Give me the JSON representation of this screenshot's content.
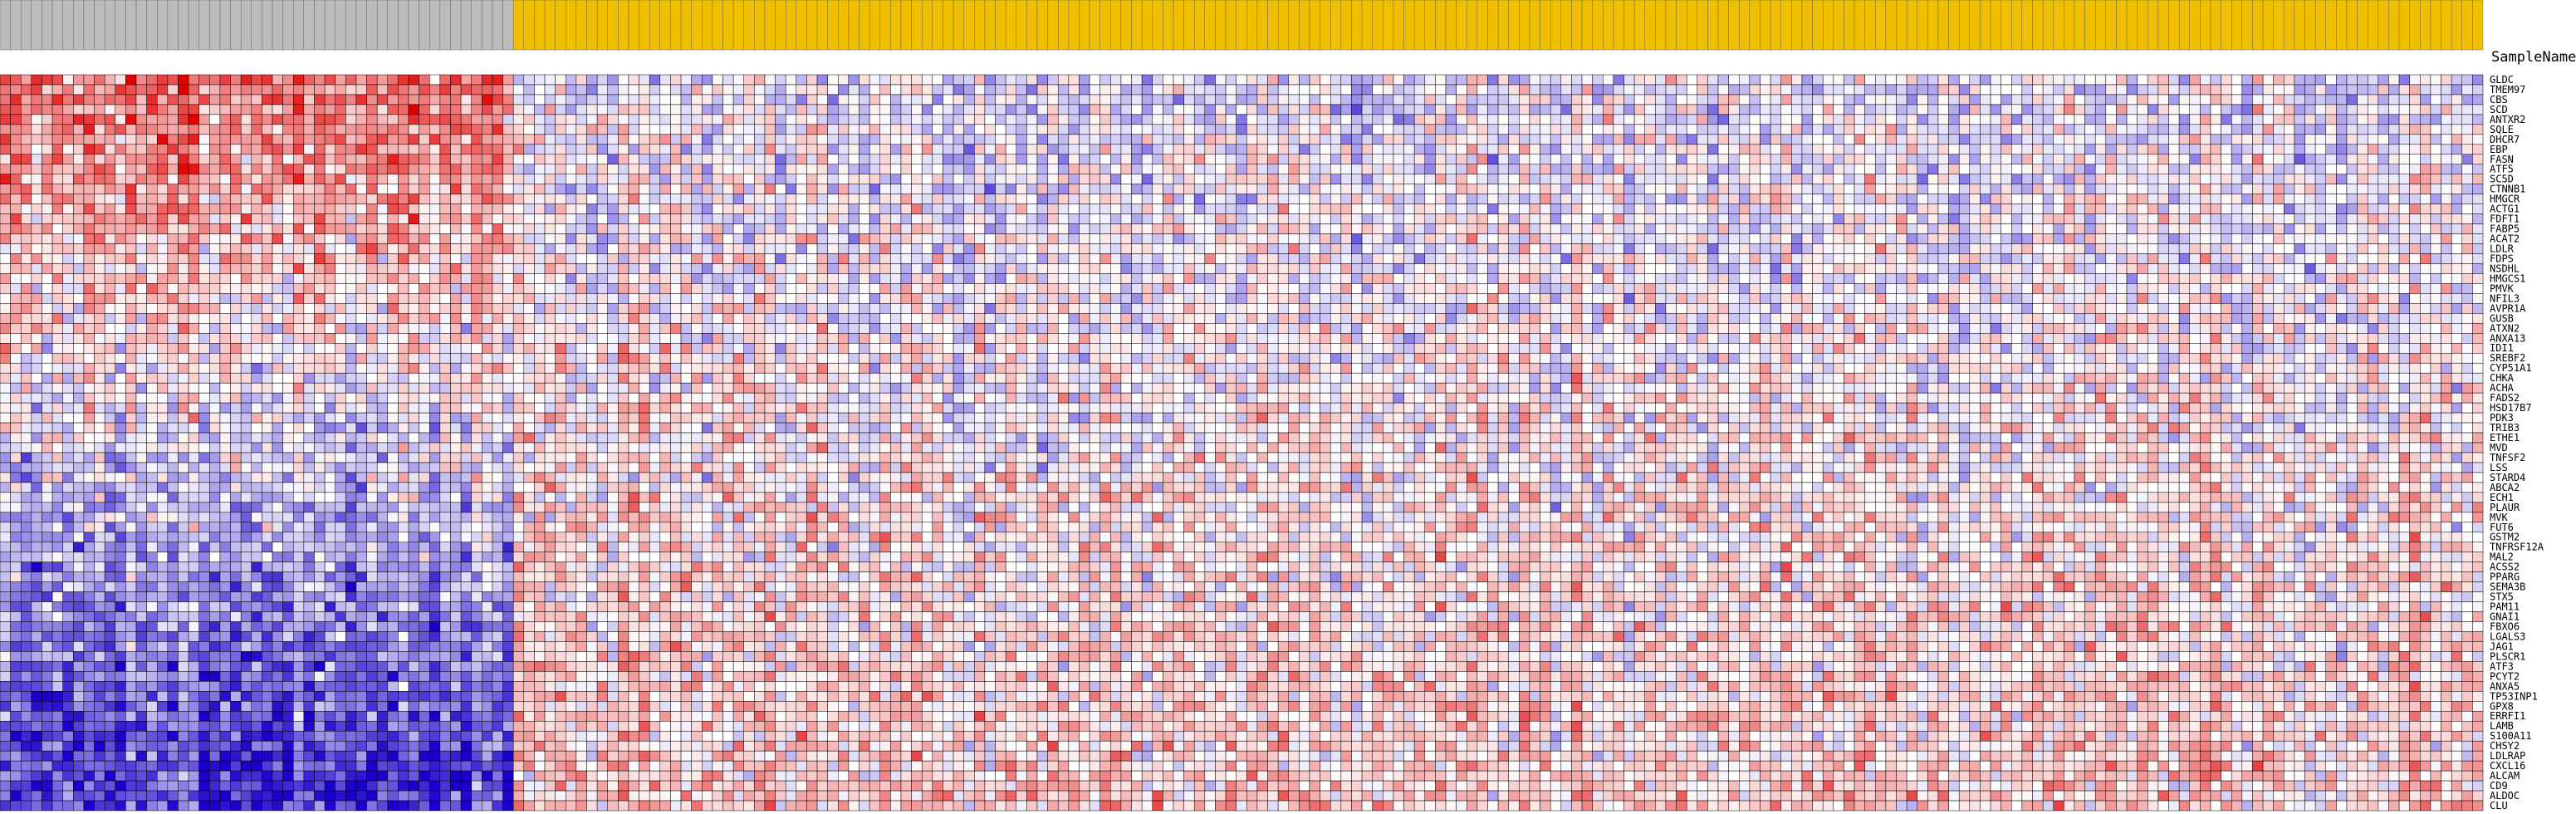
{
  "chart_data": {
    "type": "heatmap",
    "title": "",
    "xlabel": "",
    "ylabel": "",
    "header_label": "SampleName",
    "colors": {
      "class_a_header": "#bbbbbb",
      "class_b_header": "#f0c000",
      "low": "#1a00cc",
      "mid": "#ffffff",
      "high": "#e00000",
      "cell_border": "#000000"
    },
    "class_a_sample_count": 49,
    "class_b_sample_count": 188,
    "genes": [
      "GLDC",
      "TMEM97",
      "CBS",
      "SCD",
      "ANTXR2",
      "SQLE",
      "DHCR7",
      "EBP",
      "FASN",
      "ATF5",
      "SC5D",
      "CTNNB1",
      "HMGCR",
      "ACTG1",
      "FDFT1",
      "FABP5",
      "ACAT2",
      "LDLR",
      "FDPS",
      "NSDHL",
      "HMGCS1",
      "PMVK",
      "NFIL3",
      "AVPR1A",
      "GUSB",
      "ATXN2",
      "ANXA13",
      "IDI1",
      "SREBF2",
      "CYP51A1",
      "CHKA",
      "ACHA",
      "FADS2",
      "HSD17B7",
      "PDK3",
      "TRIB3",
      "ETHE1",
      "MVD",
      "TNFSF2",
      "LSS",
      "STARD4",
      "ABCA2",
      "ECH1",
      "PLAUR",
      "MVK",
      "FUT6",
      "GSTM2",
      "TNFRSF12A",
      "MAL2",
      "ACSS2",
      "PPARG",
      "SEMA3B",
      "STX5",
      "PAM11",
      "GNAI1",
      "FBXO6",
      "LGALS3",
      "JAG1",
      "PLSCR1",
      "ATF3",
      "PCYT2",
      "ANXA5",
      "TP53INP1",
      "GPX8",
      "ERRFI1",
      "LAMB",
      "S100A11",
      "CHSY2",
      "LDLRAP",
      "CXCL16",
      "ALCAM",
      "CD9",
      "ALDOC",
      "CLU"
    ],
    "values_note": "Each value is a z-score in [-1, 1] (−1 = blue, +1 = red). Rows = genes, columns = samples.",
    "values": []
  }
}
